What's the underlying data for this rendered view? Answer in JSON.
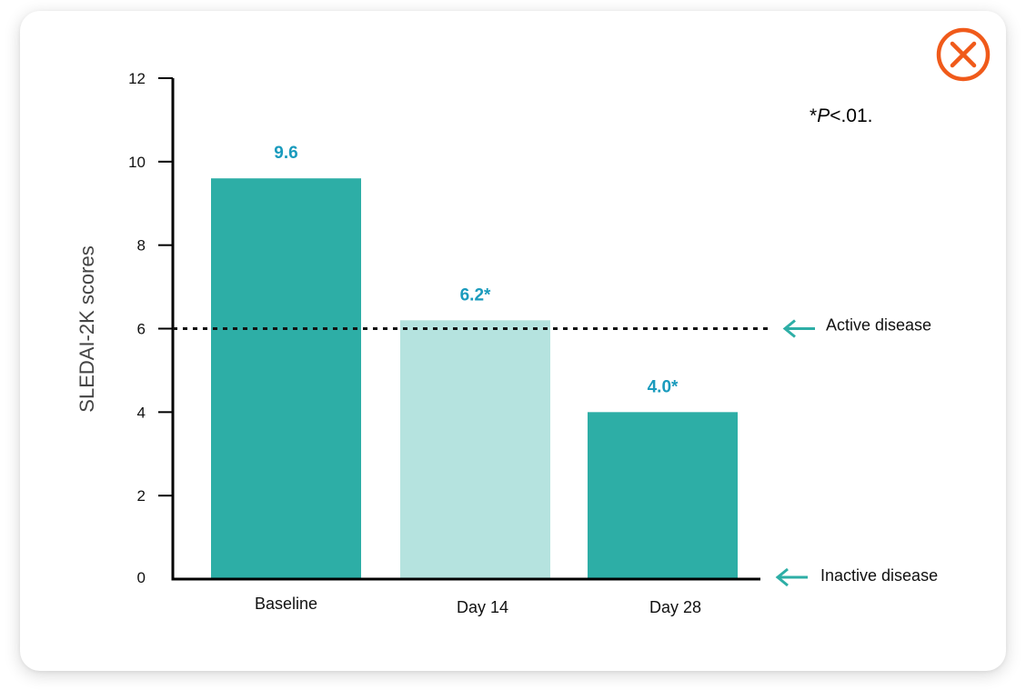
{
  "chart_data": {
    "type": "bar",
    "categories": [
      "Baseline",
      "Day 14",
      "Day 28"
    ],
    "values": [
      9.6,
      6.2,
      4.0
    ],
    "value_labels": [
      "9.6",
      "6.2*",
      "4.0*"
    ],
    "bar_colors": [
      "#2daea6",
      "#b5e3df",
      "#2daea6"
    ],
    "title": "",
    "xlabel": "",
    "ylabel": "SLEDAI-2K scores",
    "ylim": [
      0,
      12
    ],
    "yticks": [
      0,
      2,
      4,
      6,
      8,
      10,
      12
    ],
    "grid": false,
    "reference_lines": [
      {
        "value": 6,
        "label": "Active disease",
        "style": "dotted"
      },
      {
        "value": 0,
        "label": "Inactive disease",
        "style": "none"
      }
    ],
    "footnote": {
      "prefix": "*",
      "italic": "P",
      "suffix": "<.01."
    }
  },
  "colors": {
    "accent": "#2daea6",
    "value_label": "#1a9bbd",
    "close_icon": "#f05a1a"
  },
  "close_button": {
    "icon": "close-icon"
  }
}
